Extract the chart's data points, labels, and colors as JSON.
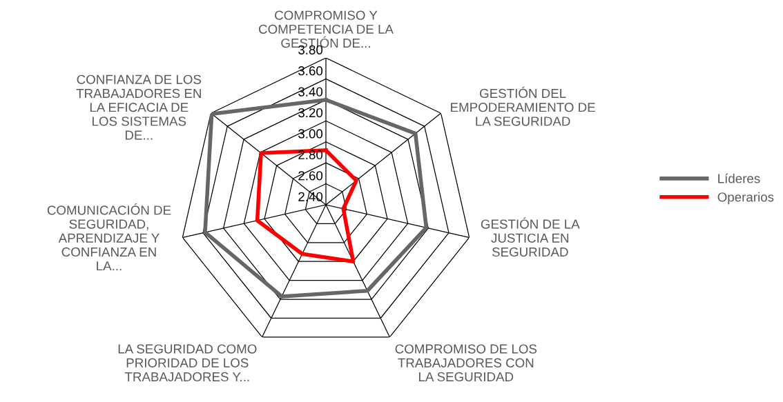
{
  "chart_data": {
    "type": "radar",
    "categories": [
      "COMPROMISO Y COMPETENCIA DE LA GESTIÓN DE...",
      "GESTIÓN DEL EMPODERAMIENTO DE LA SEGURIDAD",
      "GESTIÓN DE LA JUSTICIA EN SEGURIDAD",
      "COMPROMISO DE LOS TRABAJADORES CON LA SEGURIDAD",
      "LA SEGURIDAD COMO PRIORIDAD DE LOS TRABAJADORES Y...",
      "COMUNICACIÓN DE SEGURIDAD, APRENDIZAJE Y CONFIANZA EN LA...",
      "CONFIANZA DE LOS TRABAJADORES EN LA EFICACIA DE LOS SISTEMAS DE..."
    ],
    "series": [
      {
        "name": "Líderes",
        "color": "#666666",
        "values": [
          3.4,
          3.49,
          3.38,
          3.31,
          3.37,
          3.58,
          3.79
        ]
      },
      {
        "name": "Operarios",
        "color": "#ff0000",
        "values": [
          2.92,
          2.77,
          2.57,
          3.0,
          2.92,
          3.07,
          3.19
        ]
      }
    ],
    "ylim": [
      2.4,
      3.8
    ],
    "yticks": [
      {
        "value": 2.4,
        "label": "2.40"
      },
      {
        "value": 2.6,
        "label": "2.60"
      },
      {
        "value": 2.8,
        "label": "2.80"
      },
      {
        "value": 3.0,
        "label": "3.00"
      },
      {
        "value": 3.2,
        "label": "3.20"
      },
      {
        "value": 3.4,
        "label": "3.40"
      },
      {
        "value": 3.6,
        "label": "3.60"
      },
      {
        "value": 3.8,
        "label": "3.80"
      }
    ],
    "grid": true,
    "legend": "right",
    "marker": "none"
  }
}
